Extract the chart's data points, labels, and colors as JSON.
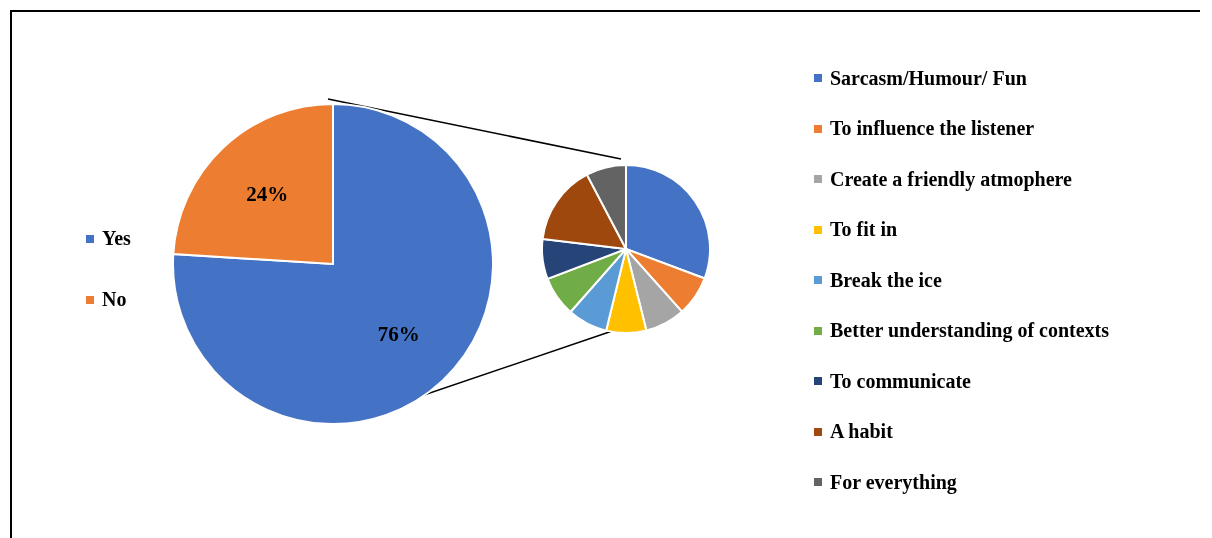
{
  "chart_data": [
    {
      "type": "pie",
      "categories": [
        "Yes",
        "No"
      ],
      "values": [
        76,
        24
      ],
      "colors": [
        "#4472c4",
        "#ed7d31"
      ],
      "data_labels": true,
      "value_labels": [
        "76%",
        "24%"
      ],
      "legend": "left"
    },
    {
      "type": "pie",
      "categories": [
        "Sarcasm/Humour/ Fun",
        "To influence the listener",
        "Create a friendly atmophere",
        "To fit in",
        "Break the ice",
        "Better understanding of contexts",
        "To communicate",
        "A habit",
        "For everything"
      ],
      "values": [
        30.7,
        7.7,
        7.7,
        7.7,
        7.7,
        7.7,
        7.7,
        15.4,
        7.7
      ],
      "colors": [
        "#4472c4",
        "#ed7d31",
        "#a5a5a5",
        "#ffc000",
        "#5b9bd5",
        "#70ad47",
        "#264478",
        "#9e480e",
        "#636363"
      ],
      "legend": "right"
    }
  ]
}
